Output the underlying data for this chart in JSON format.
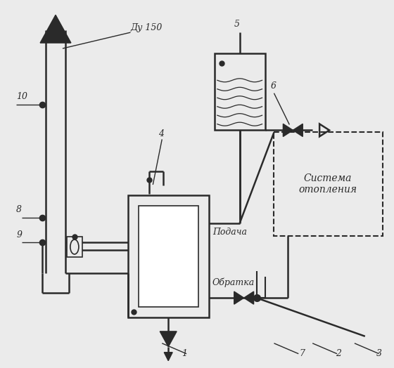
{
  "bg_color": "#ebebeb",
  "line_color": "#2a2a2a",
  "labels": {
    "du150": "Ду 150",
    "podacha": "Подача",
    "obratka": "Обратка",
    "sistema": "Система\nотопления",
    "n1": "1",
    "n2": "2",
    "n3": "3",
    "n4": "4",
    "n5": "5",
    "n6": "6",
    "n7": "7",
    "n8": "8",
    "n9": "9",
    "n10": "10"
  }
}
